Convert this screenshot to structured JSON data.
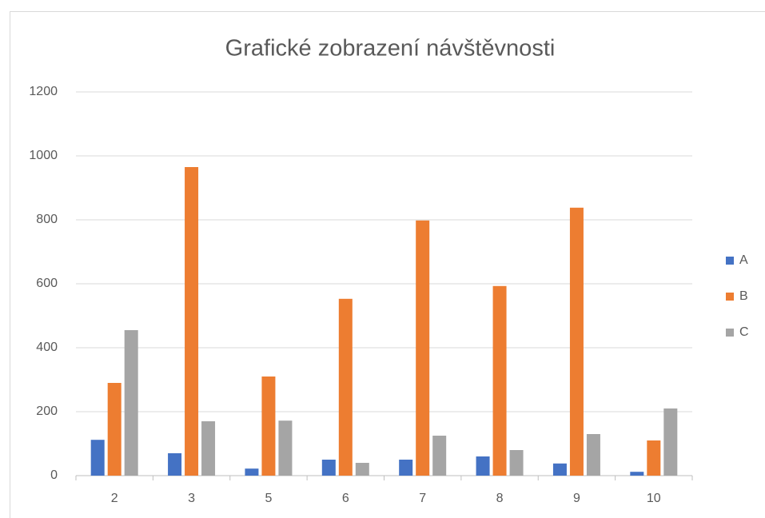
{
  "chart_data": {
    "type": "bar",
    "title": "Grafické zobrazení návštěvnosti",
    "categories": [
      "2",
      "3",
      "5",
      "6",
      "7",
      "8",
      "9",
      "10"
    ],
    "series": [
      {
        "name": "A",
        "color": "#4472c4",
        "values": [
          112,
          70,
          22,
          50,
          50,
          60,
          38,
          12
        ]
      },
      {
        "name": "B",
        "color": "#ed7d31",
        "values": [
          290,
          965,
          310,
          553,
          798,
          593,
          838,
          110
        ]
      },
      {
        "name": "C",
        "color": "#a5a5a5",
        "values": [
          455,
          170,
          172,
          40,
          125,
          80,
          130,
          210
        ]
      }
    ],
    "ylim": [
      0,
      1200
    ],
    "yticks": [
      0,
      200,
      400,
      600,
      800,
      1000,
      1200
    ],
    "grid": true,
    "legend": "right"
  }
}
